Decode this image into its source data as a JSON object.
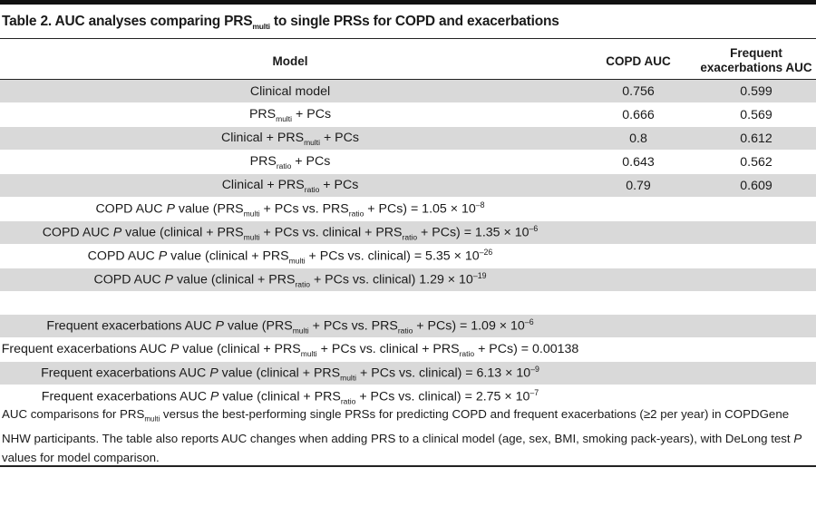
{
  "caption": {
    "prefix": "Table 2. AUC analyses comparing PRS",
    "sub": "multi",
    "suffix": " to single PRSs for COPD and exacerbations"
  },
  "columns": {
    "model": "Model",
    "copd_auc": "COPD AUC",
    "freq_auc_line1": "Frequent",
    "freq_auc_line2": "exacerbations AUC"
  },
  "model_rows": [
    {
      "parts": [
        {
          "t": "Clinical model"
        }
      ],
      "copd": "0.756",
      "freq": "0.599",
      "shaded": true
    },
    {
      "parts": [
        {
          "t": "PRS"
        },
        {
          "sub": "multi"
        },
        {
          "t": " + PCs"
        }
      ],
      "copd": "0.666",
      "freq": "0.569",
      "shaded": false
    },
    {
      "parts": [
        {
          "t": "Clinical + PRS"
        },
        {
          "sub": "multi"
        },
        {
          "t": " + PCs"
        }
      ],
      "copd": "0.8",
      "freq": "0.612",
      "shaded": true
    },
    {
      "parts": [
        {
          "t": "PRS"
        },
        {
          "sub": "ratio"
        },
        {
          "t": " + PCs"
        }
      ],
      "copd": "0.643",
      "freq": "0.562",
      "shaded": false
    },
    {
      "parts": [
        {
          "t": "Clinical + PRS"
        },
        {
          "sub": "ratio"
        },
        {
          "t": " + PCs"
        }
      ],
      "copd": "0.79",
      "freq": "0.609",
      "shaded": true
    }
  ],
  "pvalue_rows": [
    {
      "shaded": false,
      "parts": [
        {
          "t": "COPD AUC "
        },
        {
          "i": "P"
        },
        {
          "t": " value (PRS"
        },
        {
          "sub": "multi"
        },
        {
          "t": " + PCs vs. PRS"
        },
        {
          "sub": "ratio"
        },
        {
          "t": " + PCs) = 1.05 × 10"
        },
        {
          "sup": "–8"
        }
      ]
    },
    {
      "shaded": true,
      "parts": [
        {
          "t": "COPD AUC "
        },
        {
          "i": "P"
        },
        {
          "t": " value (clinical + PRS"
        },
        {
          "sub": "multi"
        },
        {
          "t": " + PCs vs. clinical + PRS"
        },
        {
          "sub": "ratio"
        },
        {
          "t": " + PCs) = 1.35 × 10"
        },
        {
          "sup": "–6"
        }
      ]
    },
    {
      "shaded": false,
      "parts": [
        {
          "t": "COPD AUC "
        },
        {
          "i": "P"
        },
        {
          "t": " value (clinical + PRS"
        },
        {
          "sub": "multi"
        },
        {
          "t": " + PCs vs. clinical) = 5.35 × 10"
        },
        {
          "sup": "–26"
        }
      ]
    },
    {
      "shaded": true,
      "parts": [
        {
          "t": "COPD AUC "
        },
        {
          "i": "P"
        },
        {
          "t": " value (clinical + PRS"
        },
        {
          "sub": "ratio"
        },
        {
          "t": " + PCs vs. clinical) 1.29 × 10"
        },
        {
          "sup": "–19"
        }
      ]
    },
    {
      "gap": true
    },
    {
      "shaded": true,
      "parts": [
        {
          "t": "Frequent exacerbations AUC "
        },
        {
          "i": "P"
        },
        {
          "t": " value (PRS"
        },
        {
          "sub": "multi"
        },
        {
          "t": " + PCs vs. PRS"
        },
        {
          "sub": "ratio"
        },
        {
          "t": " + PCs) = 1.09 × 10"
        },
        {
          "sup": "–6"
        }
      ]
    },
    {
      "shaded": false,
      "parts": [
        {
          "t": "Frequent exacerbations AUC "
        },
        {
          "i": "P"
        },
        {
          "t": " value (clinical + PRS"
        },
        {
          "sub": "multi"
        },
        {
          "t": " + PCs vs. clinical + PRS"
        },
        {
          "sub": "ratio"
        },
        {
          "t": " + PCs) = 0.00138"
        }
      ]
    },
    {
      "shaded": true,
      "parts": [
        {
          "t": "Frequent exacerbations AUC "
        },
        {
          "i": "P"
        },
        {
          "t": " value (clinical + PRS"
        },
        {
          "sub": "multi"
        },
        {
          "t": " + PCs vs. clinical) = 6.13 × 10"
        },
        {
          "sup": "–9"
        }
      ]
    },
    {
      "shaded": false,
      "parts": [
        {
          "t": "Frequent exacerbations AUC "
        },
        {
          "i": "P"
        },
        {
          "t": " value (clinical + PRS"
        },
        {
          "sub": "ratio"
        },
        {
          "t": " + PCs vs. clinical) = 2.75 × 10"
        },
        {
          "sup": "–7"
        }
      ]
    }
  ],
  "footnote": [
    {
      "t": "AUC comparisons for PRS"
    },
    {
      "sub": "multi"
    },
    {
      "t": " versus the best-performing single PRSs for predicting COPD and frequent exacerbations (≥2 per year) in COPDGene NHW participants. The table also reports AUC changes when adding PRS to a clinical model (age, sex, BMI, smoking pack-years), with DeLong test "
    },
    {
      "i": "P"
    },
    {
      "t": " values for model comparison."
    }
  ],
  "colors": {
    "rule": "#222222",
    "shade": "#d9d9d9",
    "text": "#1a1a1a"
  }
}
